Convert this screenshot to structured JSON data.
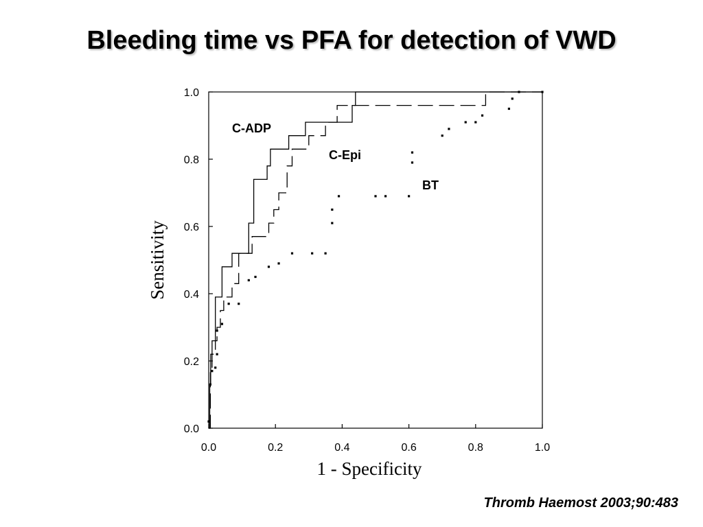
{
  "slide": {
    "title": "Bleeding time vs PFA for detection of VWD",
    "citation": "Thromb Haemost 2003;90:483"
  },
  "chart_data": {
    "type": "line",
    "xlabel": "1 - Specificity",
    "ylabel": "Sensitivity",
    "xlim": [
      0.0,
      1.0
    ],
    "ylim": [
      0.0,
      1.0
    ],
    "xticks": [
      "0.0",
      "0.2",
      "0.4",
      "0.6",
      "0.8",
      "1.0"
    ],
    "yticks": [
      "0.0",
      "0.2",
      "0.4",
      "0.6",
      "0.8",
      "1.0"
    ],
    "grid": false,
    "series": [
      {
        "name": "C-ADP",
        "style": "solid",
        "color": "#000000",
        "x": [
          0.0,
          0.003,
          0.003,
          0.006,
          0.006,
          0.01,
          0.01,
          0.02,
          0.02,
          0.025,
          0.025,
          0.04,
          0.04,
          0.06,
          0.06,
          0.07,
          0.07,
          0.12,
          0.12,
          0.135,
          0.135,
          0.175,
          0.175,
          0.185,
          0.185,
          0.24,
          0.24,
          0.29,
          0.29,
          0.43,
          0.43,
          0.44,
          0.44,
          1.0
        ],
        "y": [
          0.0,
          0.0,
          0.13,
          0.13,
          0.22,
          0.22,
          0.26,
          0.26,
          0.39,
          0.39,
          0.39,
          0.39,
          0.48,
          0.48,
          0.48,
          0.48,
          0.52,
          0.52,
          0.61,
          0.61,
          0.74,
          0.74,
          0.78,
          0.78,
          0.83,
          0.83,
          0.87,
          0.87,
          0.91,
          0.91,
          0.96,
          0.96,
          1.0,
          1.0
        ]
      },
      {
        "name": "C-Epi",
        "style": "dashed",
        "color": "#000000",
        "x": [
          0.0,
          0.005,
          0.005,
          0.01,
          0.01,
          0.02,
          0.02,
          0.025,
          0.025,
          0.035,
          0.035,
          0.045,
          0.045,
          0.07,
          0.07,
          0.09,
          0.09,
          0.13,
          0.13,
          0.18,
          0.18,
          0.195,
          0.195,
          0.21,
          0.21,
          0.235,
          0.235,
          0.25,
          0.25,
          0.3,
          0.3,
          0.35,
          0.35,
          0.385,
          0.385,
          0.61,
          0.61,
          0.83,
          0.83,
          0.86,
          0.86,
          1.0
        ],
        "y": [
          0.0,
          0.0,
          0.17,
          0.17,
          0.22,
          0.22,
          0.26,
          0.26,
          0.3,
          0.3,
          0.35,
          0.35,
          0.39,
          0.39,
          0.43,
          0.43,
          0.52,
          0.52,
          0.57,
          0.57,
          0.61,
          0.61,
          0.65,
          0.65,
          0.7,
          0.7,
          0.78,
          0.78,
          0.83,
          0.83,
          0.87,
          0.87,
          0.91,
          0.91,
          0.96,
          0.96,
          0.96,
          0.96,
          1.0,
          1.0,
          1.0,
          1.0
        ]
      },
      {
        "name": "BT",
        "style": "dotted",
        "color": "#000000",
        "points": [
          [
            0.0,
            0.02
          ],
          [
            0.005,
            0.13
          ],
          [
            0.01,
            0.17
          ],
          [
            0.02,
            0.18
          ],
          [
            0.025,
            0.22
          ],
          [
            0.025,
            0.29
          ],
          [
            0.04,
            0.31
          ],
          [
            0.06,
            0.37
          ],
          [
            0.09,
            0.37
          ],
          [
            0.12,
            0.44
          ],
          [
            0.14,
            0.45
          ],
          [
            0.18,
            0.48
          ],
          [
            0.21,
            0.49
          ],
          [
            0.25,
            0.52
          ],
          [
            0.31,
            0.52
          ],
          [
            0.35,
            0.52
          ],
          [
            0.37,
            0.61
          ],
          [
            0.37,
            0.65
          ],
          [
            0.39,
            0.69
          ],
          [
            0.5,
            0.69
          ],
          [
            0.53,
            0.69
          ],
          [
            0.6,
            0.69
          ],
          [
            0.61,
            0.79
          ],
          [
            0.61,
            0.82
          ],
          [
            0.7,
            0.87
          ],
          [
            0.72,
            0.89
          ],
          [
            0.77,
            0.91
          ],
          [
            0.8,
            0.91
          ],
          [
            0.82,
            0.93
          ],
          [
            0.9,
            0.95
          ],
          [
            0.91,
            0.98
          ],
          [
            0.93,
            1.0
          ],
          [
            1.0,
            1.0
          ]
        ]
      }
    ],
    "annotations": [
      {
        "text": "C-ADP",
        "x": 0.07,
        "y": 0.88
      },
      {
        "text": "C-Epi",
        "x": 0.36,
        "y": 0.8
      },
      {
        "text": "BT",
        "x": 0.64,
        "y": 0.71
      }
    ]
  }
}
